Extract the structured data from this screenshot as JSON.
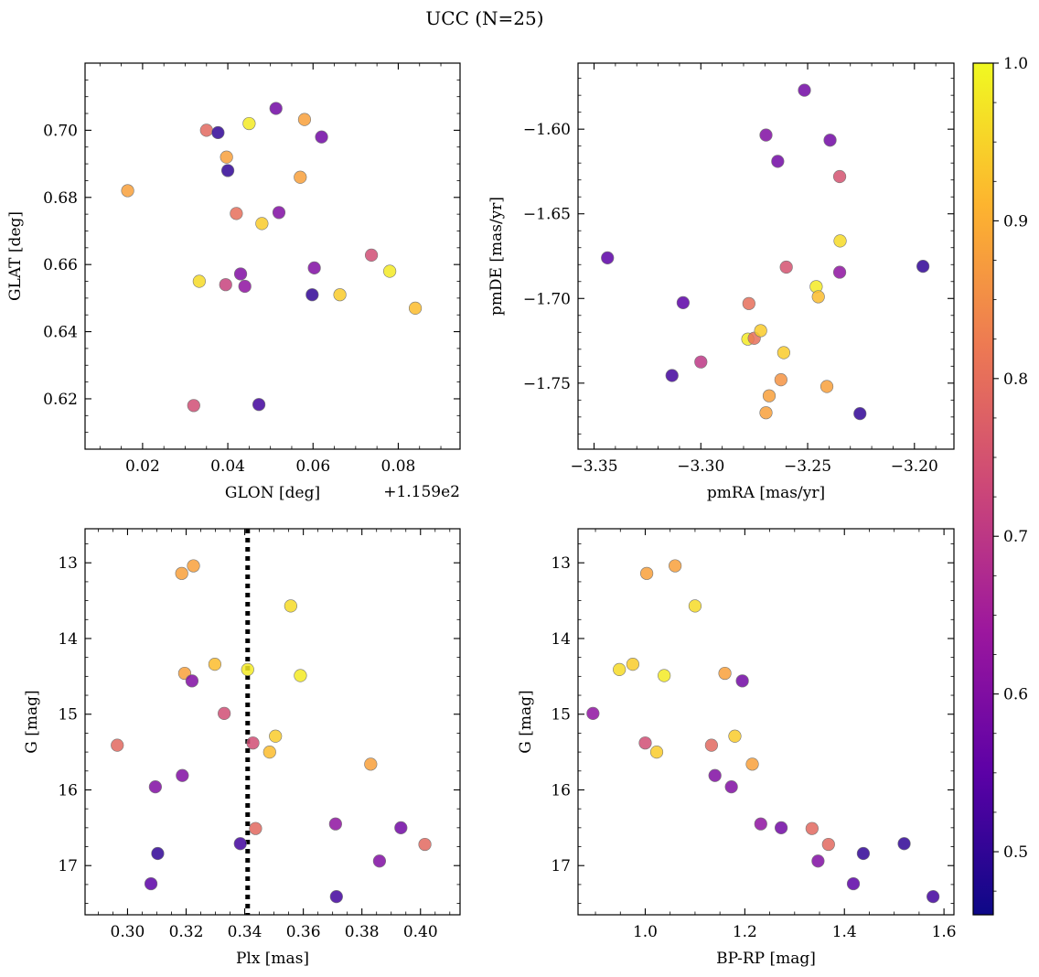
{
  "figure": {
    "suptitle": "UCC (N=25)"
  },
  "colorbar": {
    "range": [
      0.46,
      1.0
    ],
    "ticks": [
      0.5,
      0.6,
      0.7,
      0.8,
      0.9,
      1.0
    ],
    "tick_labels": [
      "0.5",
      "0.6",
      "0.7",
      "0.8",
      "0.9",
      "1.0"
    ],
    "colormap": [
      "#0d0887",
      "#5c01a6",
      "#9c179e",
      "#cc4778",
      "#ed7953",
      "#fdb42f",
      "#f0f921"
    ]
  },
  "chart_data": [
    {
      "id": "glon_glat",
      "type": "scatter",
      "xlabel": "GLON [deg]",
      "ylabel": "GLAT [deg]",
      "offset_label": "+1.159e2",
      "xlim": [
        0.0065,
        0.0945
      ],
      "ylim": [
        0.605,
        0.72
      ],
      "y_inverted": false,
      "xticks": [
        0.02,
        0.04,
        0.06,
        0.08
      ],
      "xtick_labels": [
        "0.02",
        "0.04",
        "0.06",
        "0.08"
      ],
      "xminor": 0.005,
      "yticks": [
        0.62,
        0.64,
        0.66,
        0.68,
        0.7
      ],
      "ytick_labels": [
        "0.62",
        "0.64",
        "0.66",
        "0.68",
        "0.70"
      ],
      "yminor": 0.005,
      "points": [
        {
          "x": 0.0165,
          "y": 0.682,
          "c": 0.88
        },
        {
          "x": 0.032,
          "y": 0.618,
          "c": 0.74
        },
        {
          "x": 0.0333,
          "y": 0.655,
          "c": 0.96
        },
        {
          "x": 0.035,
          "y": 0.7,
          "c": 0.79
        },
        {
          "x": 0.0377,
          "y": 0.6993,
          "c": 0.5
        },
        {
          "x": 0.0395,
          "y": 0.654,
          "c": 0.72
        },
        {
          "x": 0.0397,
          "y": 0.692,
          "c": 0.88
        },
        {
          "x": 0.04,
          "y": 0.688,
          "c": 0.5
        },
        {
          "x": 0.042,
          "y": 0.6752,
          "c": 0.8
        },
        {
          "x": 0.043,
          "y": 0.6572,
          "c": 0.6
        },
        {
          "x": 0.044,
          "y": 0.6535,
          "c": 0.62
        },
        {
          "x": 0.045,
          "y": 0.702,
          "c": 0.98
        },
        {
          "x": 0.0473,
          "y": 0.6183,
          "c": 0.52
        },
        {
          "x": 0.048,
          "y": 0.6722,
          "c": 0.94
        },
        {
          "x": 0.0513,
          "y": 0.7065,
          "c": 0.58
        },
        {
          "x": 0.052,
          "y": 0.6755,
          "c": 0.6
        },
        {
          "x": 0.057,
          "y": 0.686,
          "c": 0.88
        },
        {
          "x": 0.058,
          "y": 0.7032,
          "c": 0.88
        },
        {
          "x": 0.0598,
          "y": 0.651,
          "c": 0.5
        },
        {
          "x": 0.0603,
          "y": 0.659,
          "c": 0.6
        },
        {
          "x": 0.062,
          "y": 0.698,
          "c": 0.58
        },
        {
          "x": 0.0663,
          "y": 0.651,
          "c": 0.94
        },
        {
          "x": 0.0737,
          "y": 0.6628,
          "c": 0.74
        },
        {
          "x": 0.078,
          "y": 0.658,
          "c": 0.98
        },
        {
          "x": 0.084,
          "y": 0.647,
          "c": 0.92
        }
      ]
    },
    {
      "id": "pmra_pmde",
      "type": "scatter",
      "xlabel": "pmRA [mas/yr]",
      "ylabel": "pmDE [mas/yr]",
      "xlim": [
        -3.3575,
        -3.1815
      ],
      "ylim": [
        -1.789,
        -1.561
      ],
      "y_inverted": false,
      "xticks": [
        -3.35,
        -3.3,
        -3.25,
        -3.2
      ],
      "xtick_labels": [
        "−3.35",
        "−3.30",
        "−3.25",
        "−3.20"
      ],
      "xminor": 0.01,
      "yticks": [
        -1.75,
        -1.7,
        -1.65,
        -1.6
      ],
      "ytick_labels": [
        "−1.75",
        "−1.70",
        "−1.65",
        "−1.60"
      ],
      "yminor": 0.01,
      "points": [
        {
          "x": -3.3437,
          "y": -1.676,
          "c": 0.55
        },
        {
          "x": -3.3135,
          "y": -1.7455,
          "c": 0.52
        },
        {
          "x": -3.3083,
          "y": -1.7025,
          "c": 0.55
        },
        {
          "x": -3.3,
          "y": -1.7375,
          "c": 0.7
        },
        {
          "x": -3.2775,
          "y": -1.703,
          "c": 0.8
        },
        {
          "x": -3.278,
          "y": -1.724,
          "c": 0.98
        },
        {
          "x": -3.275,
          "y": -1.7235,
          "c": 0.8
        },
        {
          "x": -3.272,
          "y": -1.719,
          "c": 0.94
        },
        {
          "x": -3.2695,
          "y": -1.6035,
          "c": 0.6
        },
        {
          "x": -3.2695,
          "y": -1.7675,
          "c": 0.88
        },
        {
          "x": -3.268,
          "y": -1.7575,
          "c": 0.88
        },
        {
          "x": -3.264,
          "y": -1.619,
          "c": 0.58
        },
        {
          "x": -3.2625,
          "y": -1.748,
          "c": 0.86
        },
        {
          "x": -3.2612,
          "y": -1.732,
          "c": 0.94
        },
        {
          "x": -3.26,
          "y": -1.6815,
          "c": 0.75
        },
        {
          "x": -3.2515,
          "y": -1.577,
          "c": 0.58
        },
        {
          "x": -3.246,
          "y": -1.693,
          "c": 0.98
        },
        {
          "x": -3.245,
          "y": -1.699,
          "c": 0.92
        },
        {
          "x": -3.241,
          "y": -1.752,
          "c": 0.88
        },
        {
          "x": -3.2395,
          "y": -1.6065,
          "c": 0.58
        },
        {
          "x": -3.235,
          "y": -1.628,
          "c": 0.75
        },
        {
          "x": -3.2348,
          "y": -1.666,
          "c": 0.96
        },
        {
          "x": -3.235,
          "y": -1.6845,
          "c": 0.62
        },
        {
          "x": -3.2255,
          "y": -1.768,
          "c": 0.5
        },
        {
          "x": -3.196,
          "y": -1.681,
          "c": 0.5
        }
      ]
    },
    {
      "id": "plx_g",
      "type": "scatter",
      "xlabel": "Plx [mas]",
      "ylabel": "G [mag]",
      "xlim": [
        0.2855,
        0.4135
      ],
      "ylim": [
        12.55,
        17.65
      ],
      "y_inverted": true,
      "vline": 0.341,
      "xticks": [
        0.3,
        0.32,
        0.34,
        0.36,
        0.38,
        0.4
      ],
      "xtick_labels": [
        "0.30",
        "0.32",
        "0.34",
        "0.36",
        "0.38",
        "0.40"
      ],
      "xminor": 0.005,
      "yticks": [
        13,
        14,
        15,
        16,
        17
      ],
      "ytick_labels": [
        "13",
        "14",
        "15",
        "16",
        "17"
      ],
      "yminor": 0.25,
      "points": [
        {
          "x": 0.2965,
          "y": 15.41,
          "c": 0.79
        },
        {
          "x": 0.308,
          "y": 17.24,
          "c": 0.55
        },
        {
          "x": 0.3095,
          "y": 15.96,
          "c": 0.6
        },
        {
          "x": 0.3103,
          "y": 16.84,
          "c": 0.5
        },
        {
          "x": 0.3185,
          "y": 13.14,
          "c": 0.88
        },
        {
          "x": 0.3187,
          "y": 15.81,
          "c": 0.6
        },
        {
          "x": 0.3195,
          "y": 14.46,
          "c": 0.88
        },
        {
          "x": 0.322,
          "y": 14.56,
          "c": 0.6
        },
        {
          "x": 0.3225,
          "y": 13.04,
          "c": 0.88
        },
        {
          "x": 0.3298,
          "y": 14.34,
          "c": 0.92
        },
        {
          "x": 0.333,
          "y": 14.99,
          "c": 0.74
        },
        {
          "x": 0.3385,
          "y": 16.71,
          "c": 0.52
        },
        {
          "x": 0.341,
          "y": 14.41,
          "c": 0.98
        },
        {
          "x": 0.3428,
          "y": 15.38,
          "c": 0.74
        },
        {
          "x": 0.3437,
          "y": 16.51,
          "c": 0.79
        },
        {
          "x": 0.3485,
          "y": 15.5,
          "c": 0.92
        },
        {
          "x": 0.3505,
          "y": 15.29,
          "c": 0.94
        },
        {
          "x": 0.3557,
          "y": 13.57,
          "c": 0.96
        },
        {
          "x": 0.359,
          "y": 14.49,
          "c": 0.98
        },
        {
          "x": 0.371,
          "y": 16.45,
          "c": 0.62
        },
        {
          "x": 0.3713,
          "y": 17.41,
          "c": 0.52
        },
        {
          "x": 0.383,
          "y": 15.66,
          "c": 0.88
        },
        {
          "x": 0.386,
          "y": 16.94,
          "c": 0.6
        },
        {
          "x": 0.3933,
          "y": 16.5,
          "c": 0.58
        },
        {
          "x": 0.4015,
          "y": 16.72,
          "c": 0.79
        }
      ]
    },
    {
      "id": "bprp_g",
      "type": "scatter",
      "xlabel": "BP-RP [mag]",
      "ylabel": "G [mag]",
      "xlim": [
        0.865,
        1.62
      ],
      "ylim": [
        12.55,
        17.65
      ],
      "y_inverted": true,
      "xticks": [
        1.0,
        1.2,
        1.4,
        1.6
      ],
      "xtick_labels": [
        "1.0",
        "1.2",
        "1.4",
        "1.6"
      ],
      "xminor": 0.05,
      "yticks": [
        13,
        14,
        15,
        16,
        17
      ],
      "ytick_labels": [
        "13",
        "14",
        "15",
        "16",
        "17"
      ],
      "yminor": 0.25,
      "points": [
        {
          "x": 0.895,
          "y": 14.99,
          "c": 0.62
        },
        {
          "x": 0.948,
          "y": 14.41,
          "c": 0.96
        },
        {
          "x": 0.975,
          "y": 14.34,
          "c": 0.94
        },
        {
          "x": 1.0,
          "y": 15.38,
          "c": 0.74
        },
        {
          "x": 1.003,
          "y": 13.14,
          "c": 0.88
        },
        {
          "x": 1.023,
          "y": 15.5,
          "c": 0.94
        },
        {
          "x": 1.038,
          "y": 14.49,
          "c": 0.98
        },
        {
          "x": 1.06,
          "y": 13.04,
          "c": 0.88
        },
        {
          "x": 1.1,
          "y": 13.57,
          "c": 0.96
        },
        {
          "x": 1.133,
          "y": 15.41,
          "c": 0.79
        },
        {
          "x": 1.14,
          "y": 15.81,
          "c": 0.6
        },
        {
          "x": 1.16,
          "y": 14.46,
          "c": 0.88
        },
        {
          "x": 1.173,
          "y": 15.96,
          "c": 0.6
        },
        {
          "x": 1.18,
          "y": 15.29,
          "c": 0.94
        },
        {
          "x": 1.195,
          "y": 14.56,
          "c": 0.58
        },
        {
          "x": 1.215,
          "y": 15.66,
          "c": 0.88
        },
        {
          "x": 1.232,
          "y": 16.45,
          "c": 0.62
        },
        {
          "x": 1.273,
          "y": 16.5,
          "c": 0.58
        },
        {
          "x": 1.335,
          "y": 16.51,
          "c": 0.79
        },
        {
          "x": 1.347,
          "y": 16.94,
          "c": 0.6
        },
        {
          "x": 1.368,
          "y": 16.72,
          "c": 0.79
        },
        {
          "x": 1.418,
          "y": 17.24,
          "c": 0.55
        },
        {
          "x": 1.438,
          "y": 16.84,
          "c": 0.5
        },
        {
          "x": 1.52,
          "y": 16.71,
          "c": 0.5
        },
        {
          "x": 1.578,
          "y": 17.41,
          "c": 0.52
        }
      ]
    }
  ]
}
